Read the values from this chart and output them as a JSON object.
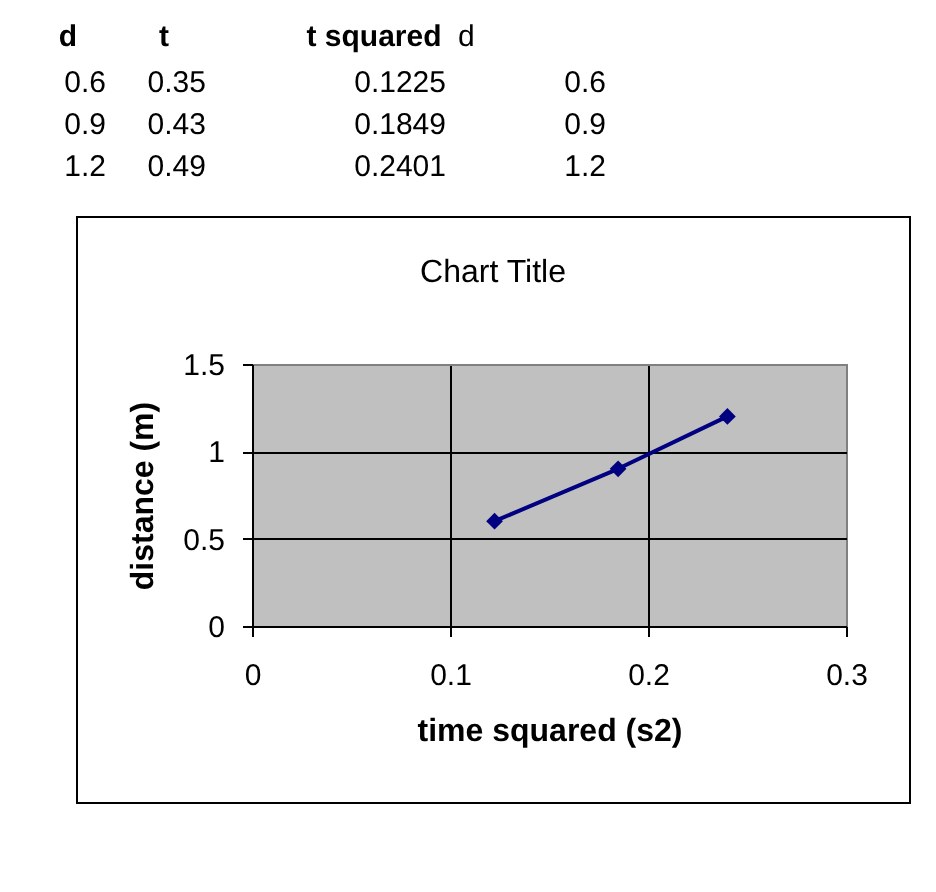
{
  "chart_data": {
    "type": "line",
    "title": "Chart Title",
    "xlabel": "time squared (s2)",
    "ylabel": "distance (m)",
    "x": [
      0.1225,
      0.1849,
      0.2401
    ],
    "series": [
      {
        "color": "#000080",
        "values": [
          0.6,
          0.9,
          1.2
        ]
      }
    ],
    "xlim": [
      0,
      0.3
    ],
    "xticks": [
      0,
      0.1,
      0.2,
      0.3
    ],
    "ylim": [
      0,
      1.5
    ],
    "yticks": [
      0,
      0.5,
      1,
      1.5
    ],
    "grid": true,
    "marker": "diamond",
    "line_style": "solid",
    "annotations": [
      "d",
      "t",
      "t squared",
      "d",
      "0.6",
      "0.35",
      "0.1225",
      "0.6",
      "0.9",
      "0.43",
      "0.1849",
      "0.9",
      "1.2",
      "0.49",
      "0.2401",
      "1.2"
    ]
  }
}
